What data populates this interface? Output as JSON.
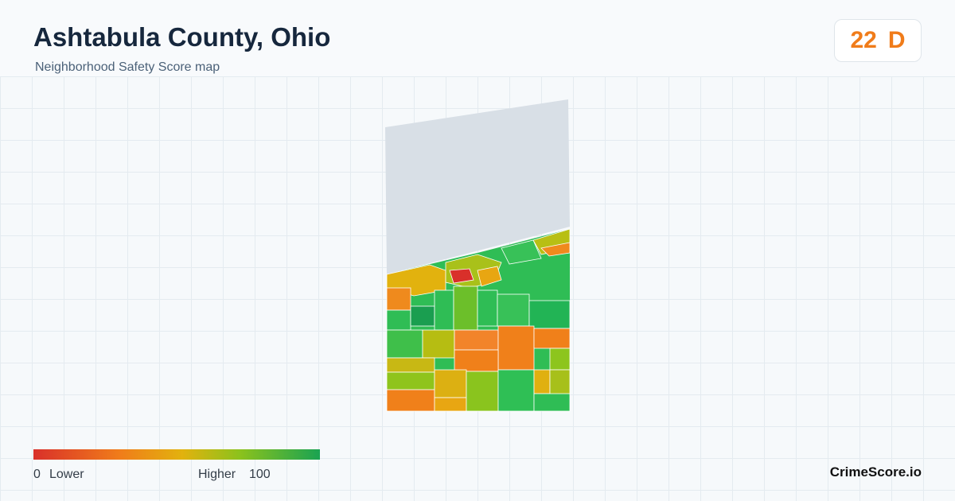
{
  "header": {
    "title": "Ashtabula County, Ohio",
    "subtitle": "Neighborhood Safety Score map",
    "score": 22,
    "grade": "D"
  },
  "legend": {
    "min": 0,
    "min_label": "Lower",
    "max_label": "Higher",
    "max": 100
  },
  "footer": {
    "brand": "CrimeScore.io"
  }
}
